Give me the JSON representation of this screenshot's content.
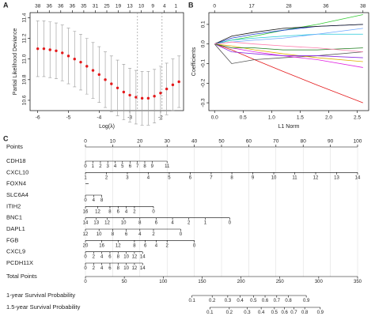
{
  "chart_data": [
    {
      "type": "errorbar",
      "panel_label": "A",
      "xlabel": "Log(λ)",
      "ylabel": "Partial Likelihood Deviance",
      "x": [
        -6.0,
        -5.8,
        -5.6,
        -5.4,
        -5.2,
        -5.0,
        -4.8,
        -4.6,
        -4.4,
        -4.2,
        -4.0,
        -3.8,
        -3.6,
        -3.4,
        -3.2,
        -3.0,
        -2.8,
        -2.6,
        -2.4,
        -2.2,
        -2.0,
        -1.8,
        -1.6,
        -1.4
      ],
      "values": [
        11.1,
        11.1,
        11.09,
        11.08,
        11.06,
        11.03,
        11.0,
        10.97,
        10.93,
        10.89,
        10.85,
        10.8,
        10.76,
        10.72,
        10.68,
        10.65,
        10.63,
        10.62,
        10.62,
        10.64,
        10.67,
        10.71,
        10.75,
        10.78
      ],
      "errors": [
        0.27,
        0.27,
        0.27,
        0.27,
        0.27,
        0.27,
        0.27,
        0.27,
        0.27,
        0.27,
        0.27,
        0.27,
        0.27,
        0.27,
        0.27,
        0.26,
        0.26,
        0.26,
        0.26,
        0.26,
        0.26,
        0.25,
        0.25,
        0.25
      ],
      "color": "#e41a1c",
      "error_color": "#9a9a9a",
      "xlim": [
        -6.25,
        -1.25
      ],
      "ylim": [
        10.5,
        11.45
      ],
      "xticks": [
        -6,
        -5,
        -4,
        -3,
        -2
      ],
      "yticks": [
        10.6,
        10.8,
        {
          "value": 11,
          "label": "11.0"
        },
        11.2,
        11.4
      ],
      "top_ticks": [
        {
          "value": -6,
          "label": "38"
        },
        {
          "value": -5.625,
          "label": "36"
        },
        {
          "value": -5.25,
          "label": "36"
        },
        {
          "value": -4.875,
          "label": "36"
        },
        {
          "value": -4.5,
          "label": "35"
        },
        {
          "value": -4.125,
          "label": "31"
        },
        {
          "value": -3.75,
          "label": "25"
        },
        {
          "value": -3.375,
          "label": "19"
        },
        {
          "value": -3,
          "label": "13"
        },
        {
          "value": -2.625,
          "label": "10"
        },
        {
          "value": -2.25,
          "label": "9"
        },
        {
          "value": -1.875,
          "label": "4"
        },
        {
          "value": -1.5,
          "label": "1"
        }
      ],
      "vlines": [
        -2.75,
        -1.95
      ]
    },
    {
      "type": "line",
      "panel_label": "B",
      "xlabel": "L1 Norm",
      "ylabel": "Coefficients",
      "x": [
        0,
        0.3,
        0.7,
        1.2,
        1.8,
        2.6
      ],
      "series": [
        {
          "color": "#33cc33",
          "values": [
            0,
            0.02,
            0.04,
            0.07,
            0.1,
            0.15
          ]
        },
        {
          "color": "#e41a1c",
          "values": [
            0,
            -0.03,
            -0.08,
            -0.14,
            -0.21,
            -0.3
          ]
        },
        {
          "color": "#555555",
          "values": [
            0,
            -0.1,
            -0.08,
            -0.07,
            -0.06,
            -0.04
          ]
        },
        {
          "color": "#1f3fd0",
          "values": [
            0,
            0.03,
            0.05,
            0.07,
            0.09,
            0.1
          ]
        },
        {
          "color": "#e020e0",
          "values": [
            0,
            -0.02,
            -0.04,
            -0.06,
            -0.08,
            -0.12
          ]
        },
        {
          "color": "#20c8d8",
          "values": [
            0,
            0.02,
            0.03,
            0.04,
            0.05,
            0.05
          ]
        },
        {
          "color": "#e0b000",
          "values": [
            0,
            -0.01,
            -0.03,
            -0.05,
            -0.07,
            -0.09
          ]
        },
        {
          "color": "#111111",
          "values": [
            0,
            0.04,
            0.06,
            0.08,
            0.09,
            0.1
          ]
        },
        {
          "color": "#8a2be2",
          "values": [
            0,
            -0.04,
            -0.05,
            -0.06,
            -0.06,
            -0.07
          ]
        },
        {
          "color": "#6fa8ff",
          "values": [
            0,
            0.01,
            0.02,
            0.03,
            0.05,
            0.08
          ]
        },
        {
          "color": "#1a7a1a",
          "values": [
            0,
            -0.02,
            -0.02,
            -0.03,
            -0.03,
            -0.02
          ]
        },
        {
          "color": "#ff7fae",
          "values": [
            0,
            0.01,
            0,
            -0.01,
            -0.02,
            -0.04
          ]
        }
      ],
      "xlim": [
        -0.1,
        2.7
      ],
      "ylim": [
        -0.34,
        0.16
      ],
      "xticks": [
        {
          "value": 0,
          "label": "0.0"
        },
        0.5,
        {
          "value": 1,
          "label": "1.0"
        },
        1.5,
        {
          "value": 2,
          "label": "2.0"
        },
        2.5
      ],
      "yticks": [
        -0.3,
        -0.2,
        -0.1,
        {
          "value": 0,
          "label": "0.0"
        },
        0.1
      ],
      "top_ticks": [
        {
          "value": 0,
          "label": "0"
        },
        {
          "value": 0.65,
          "label": "17"
        },
        {
          "value": 1.3,
          "label": "28"
        },
        {
          "value": 1.95,
          "label": "36"
        },
        {
          "value": 2.6,
          "label": "38"
        }
      ]
    },
    {
      "type": "nomogram",
      "panel_label": "C",
      "points": {
        "label": "Points",
        "ticks": [
          0,
          10,
          20,
          30,
          40,
          50,
          60,
          70,
          80,
          90,
          100
        ]
      },
      "variables": [
        {
          "label": "CDH18",
          "ticks": [
            {
              "value": 0,
              "label": "0"
            },
            {
              "value": 2.7,
              "label": "1"
            },
            {
              "value": 5.5,
              "label": "2"
            },
            {
              "value": 8.2,
              "label": "3"
            },
            {
              "value": 10.9,
              "label": "4"
            },
            {
              "value": 13.6,
              "label": "5"
            },
            {
              "value": 16.4,
              "label": "6"
            },
            {
              "value": 19.1,
              "label": "7"
            },
            {
              "value": 21.8,
              "label": "8"
            },
            {
              "value": 24.5,
              "label": "9"
            },
            {
              "value": 30,
              "label": "11"
            }
          ]
        },
        {
          "label": "CXCL10",
          "ticks": [
            {
              "value": 0,
              "label": "1"
            },
            {
              "value": 7.7,
              "label": "2"
            },
            {
              "value": 15.4,
              "label": "3"
            },
            {
              "value": 23.1,
              "label": "4"
            },
            {
              "value": 30.8,
              "label": "5"
            },
            {
              "value": 38.5,
              "label": "6"
            },
            {
              "value": 46.2,
              "label": "7"
            },
            {
              "value": 53.8,
              "label": "8"
            },
            {
              "value": 61.5,
              "label": "9"
            },
            {
              "value": 69.2,
              "label": "10"
            },
            {
              "value": 76.9,
              "label": "11"
            },
            {
              "value": 84.6,
              "label": "12"
            },
            {
              "value": 92.3,
              "label": "13"
            },
            {
              "value": 100,
              "label": "14"
            }
          ]
        },
        {
          "label": "FOXN4"
        },
        {
          "label": "SLC6A4",
          "ticks": [
            {
              "value": 0,
              "label": "0"
            },
            {
              "value": 3,
              "label": "4"
            },
            {
              "value": 6,
              "label": "8"
            }
          ]
        },
        {
          "label": "ITIH2",
          "ticks": [
            {
              "value": 0,
              "label": "16"
            },
            {
              "value": 4.5,
              "label": "12"
            },
            {
              "value": 9,
              "label": "8"
            },
            {
              "value": 12,
              "label": "6"
            },
            {
              "value": 15,
              "label": "4"
            },
            {
              "value": 18,
              "label": "2"
            },
            {
              "value": 25,
              "label": "0"
            }
          ]
        },
        {
          "label": "BNC1",
          "ticks": [
            {
              "value": 0,
              "label": "14"
            },
            {
              "value": 4,
              "label": "13"
            },
            {
              "value": 8,
              "label": "12"
            },
            {
              "value": 14,
              "label": "10"
            },
            {
              "value": 20,
              "label": "8"
            },
            {
              "value": 26,
              "label": "6"
            },
            {
              "value": 32,
              "label": "4"
            },
            {
              "value": 38,
              "label": "2"
            },
            {
              "value": 44,
              "label": "1"
            },
            {
              "value": 53,
              "label": "0"
            }
          ]
        },
        {
          "label": "DAPL1",
          "ticks": [
            {
              "value": 0,
              "label": "12"
            },
            {
              "value": 5,
              "label": "10"
            },
            {
              "value": 10,
              "label": "8"
            },
            {
              "value": 15,
              "label": "6"
            },
            {
              "value": 20,
              "label": "4"
            },
            {
              "value": 25,
              "label": "2"
            },
            {
              "value": 35,
              "label": "0"
            }
          ]
        },
        {
          "label": "FGB",
          "ticks": [
            {
              "value": 0,
              "label": "20"
            },
            {
              "value": 6,
              "label": "16"
            },
            {
              "value": 12,
              "label": "12"
            },
            {
              "value": 18,
              "label": "8"
            },
            {
              "value": 22,
              "label": "6"
            },
            {
              "value": 26,
              "label": "4"
            },
            {
              "value": 30,
              "label": "2"
            },
            {
              "value": 40,
              "label": "0"
            }
          ]
        },
        {
          "label": "CXCL9",
          "ticks": [
            {
              "value": 0,
              "label": "0"
            },
            {
              "value": 3,
              "label": "2"
            },
            {
              "value": 6,
              "label": "4"
            },
            {
              "value": 9,
              "label": "6"
            },
            {
              "value": 12,
              "label": "8"
            },
            {
              "value": 15,
              "label": "10"
            },
            {
              "value": 18,
              "label": "12"
            },
            {
              "value": 21,
              "label": "14"
            }
          ]
        },
        {
          "label": "PCDH11X",
          "ticks": [
            {
              "value": 0,
              "label": "0"
            },
            {
              "value": 3,
              "label": "2"
            },
            {
              "value": 6,
              "label": "4"
            },
            {
              "value": 9,
              "label": "6"
            },
            {
              "value": 12,
              "label": "8"
            },
            {
              "value": 15,
              "label": "10"
            },
            {
              "value": 18,
              "label": "12"
            },
            {
              "value": 21,
              "label": "14"
            }
          ]
        }
      ],
      "total": {
        "label": "Total Points",
        "ticks": [
          0,
          50,
          100,
          150,
          200,
          250,
          300,
          350
        ]
      },
      "predictions": [
        {
          "label": "1-year Survival Probability",
          "ticks": [
            {
              "value": 137,
              "label": "0.1"
            },
            {
              "value": 163,
              "label": "0.2"
            },
            {
              "value": 183,
              "label": "0.3"
            },
            {
              "value": 199,
              "label": "0.4"
            },
            {
              "value": 216,
              "label": "0.5"
            },
            {
              "value": 231,
              "label": "0.6"
            },
            {
              "value": 246,
              "label": "0.7"
            },
            {
              "value": 261,
              "label": "0.8"
            },
            {
              "value": 284,
              "label": "0.9"
            }
          ]
        },
        {
          "label": "1.5-year Survival Probability",
          "ticks": [
            {
              "value": 160,
              "label": "0.1"
            },
            {
              "value": 185,
              "label": "0.2"
            },
            {
              "value": 208,
              "label": "0.3"
            },
            {
              "value": 226,
              "label": "0.4"
            },
            {
              "value": 243,
              "label": "0.5"
            },
            {
              "value": 256,
              "label": "0.6"
            },
            {
              "value": 268,
              "label": "0.7"
            },
            {
              "value": 282,
              "label": "0.8"
            },
            {
              "value": 302,
              "label": "0.9"
            }
          ]
        }
      ]
    }
  ]
}
